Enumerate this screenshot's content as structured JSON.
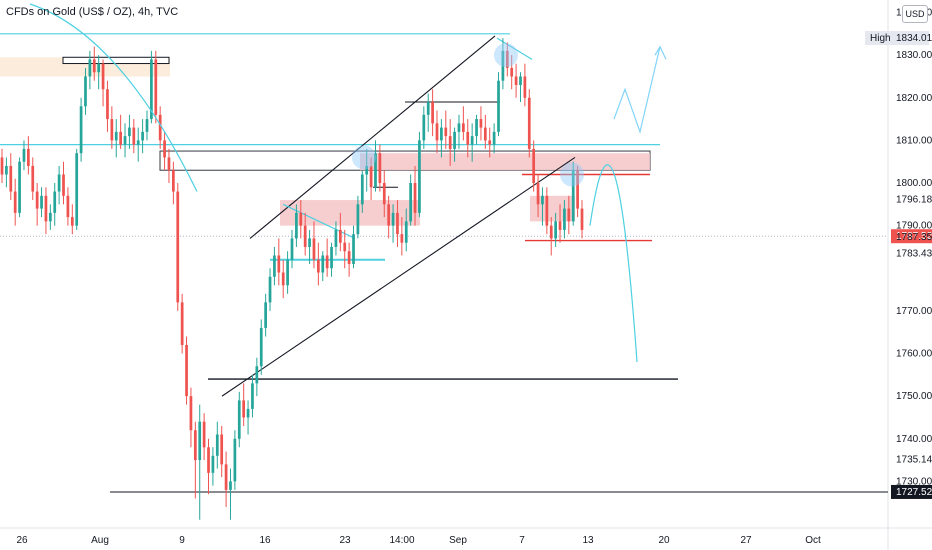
{
  "header": {
    "title": "CFDs on Gold (US$ / OZ), 4h, TVC",
    "currency": "USD"
  },
  "chart_data": {
    "type": "candlestick",
    "y_axis_side": "right",
    "ylim": [
      1720.0,
      1842.0
    ],
    "y_ticks": [
      1840.0,
      1830.0,
      1820.0,
      1810.0,
      1800.0,
      1790.0,
      1770.0,
      1760.0,
      1750.0,
      1740.0,
      1730.0
    ],
    "x_tick_labels": [
      "26",
      "Aug",
      "9",
      "16",
      "23",
      "14:00",
      "Sep",
      "7",
      "13",
      "20",
      "27",
      "Oct"
    ],
    "price_labels": [
      {
        "text": "High",
        "value": "1834.01",
        "style": "high"
      },
      {
        "text": "",
        "value": "1796.18",
        "style": "plain"
      },
      {
        "text": "",
        "value": "1787.52",
        "style": "current"
      },
      {
        "text": "",
        "value": "1787.35",
        "style": "plain"
      },
      {
        "text": "",
        "value": "1783.43",
        "style": "plain"
      },
      {
        "text": "",
        "value": "1735.14",
        "style": "plain"
      },
      {
        "text": "",
        "value": "1727.52",
        "style": "dark"
      }
    ],
    "candles": [
      [
        1806,
        1808,
        1800,
        1802
      ],
      [
        1802,
        1806,
        1799,
        1804
      ],
      [
        1804,
        1807,
        1796,
        1798
      ],
      [
        1798,
        1801,
        1790,
        1793
      ],
      [
        1793,
        1806,
        1792,
        1805
      ],
      [
        1805,
        1810,
        1803,
        1808
      ],
      [
        1808,
        1811,
        1802,
        1804
      ],
      [
        1804,
        1806,
        1796,
        1798
      ],
      [
        1798,
        1800,
        1790,
        1794
      ],
      [
        1794,
        1799,
        1792,
        1797
      ],
      [
        1797,
        1799,
        1788,
        1791
      ],
      [
        1791,
        1795,
        1789,
        1793
      ],
      [
        1793,
        1800,
        1790,
        1798
      ],
      [
        1798,
        1804,
        1795,
        1802
      ],
      [
        1802,
        1805,
        1795,
        1797
      ],
      [
        1797,
        1799,
        1790,
        1792
      ],
      [
        1792,
        1795,
        1788,
        1790
      ],
      [
        1790,
        1808,
        1789,
        1807
      ],
      [
        1807,
        1820,
        1805,
        1818
      ],
      [
        1818,
        1827,
        1816,
        1825
      ],
      [
        1825,
        1831,
        1822,
        1829
      ],
      [
        1829,
        1832,
        1824,
        1826
      ],
      [
        1826,
        1830,
        1822,
        1828
      ],
      [
        1828,
        1829,
        1818,
        1822
      ],
      [
        1822,
        1824,
        1812,
        1815
      ],
      [
        1815,
        1818,
        1808,
        1810
      ],
      [
        1810,
        1815,
        1806,
        1812
      ],
      [
        1812,
        1816,
        1808,
        1809
      ],
      [
        1809,
        1814,
        1806,
        1811
      ],
      [
        1811,
        1816,
        1808,
        1813
      ],
      [
        1813,
        1815,
        1807,
        1809
      ],
      [
        1809,
        1813,
        1805,
        1810
      ],
      [
        1810,
        1815,
        1807,
        1812
      ],
      [
        1812,
        1817,
        1810,
        1815
      ],
      [
        1815,
        1831,
        1814,
        1829
      ],
      [
        1829,
        1831,
        1814,
        1816
      ],
      [
        1816,
        1818,
        1808,
        1810
      ],
      [
        1810,
        1812,
        1803,
        1806
      ],
      [
        1806,
        1808,
        1800,
        1803
      ],
      [
        1803,
        1805,
        1795,
        1798
      ],
      [
        1798,
        1800,
        1770,
        1772
      ],
      [
        1772,
        1774,
        1760,
        1762
      ],
      [
        1762,
        1764,
        1748,
        1750
      ],
      [
        1750,
        1752,
        1738,
        1742
      ],
      [
        1742,
        1744,
        1726,
        1735
      ],
      [
        1735,
        1748,
        1721,
        1744
      ],
      [
        1744,
        1746,
        1735,
        1738
      ],
      [
        1738,
        1740,
        1727,
        1732
      ],
      [
        1732,
        1738,
        1729,
        1736
      ],
      [
        1736,
        1744,
        1733,
        1741
      ],
      [
        1741,
        1743,
        1731,
        1734
      ],
      [
        1734,
        1737,
        1724,
        1728
      ],
      [
        1728,
        1733,
        1721,
        1730
      ],
      [
        1730,
        1742,
        1728,
        1740
      ],
      [
        1740,
        1751,
        1738,
        1749
      ],
      [
        1749,
        1753,
        1743,
        1745
      ],
      [
        1745,
        1749,
        1741,
        1747
      ],
      [
        1747,
        1755,
        1745,
        1753
      ],
      [
        1753,
        1759,
        1750,
        1757
      ],
      [
        1757,
        1768,
        1755,
        1766
      ],
      [
        1766,
        1774,
        1764,
        1772
      ],
      [
        1772,
        1780,
        1770,
        1778
      ],
      [
        1778,
        1785,
        1776,
        1783
      ],
      [
        1783,
        1787,
        1776,
        1779
      ],
      [
        1779,
        1782,
        1773,
        1776
      ],
      [
        1776,
        1784,
        1774,
        1782
      ],
      [
        1782,
        1789,
        1780,
        1787
      ],
      [
        1787,
        1795,
        1785,
        1793
      ],
      [
        1793,
        1796,
        1787,
        1790
      ],
      [
        1790,
        1793,
        1783,
        1785
      ],
      [
        1785,
        1789,
        1781,
        1787
      ],
      [
        1787,
        1791,
        1780,
        1782
      ],
      [
        1782,
        1786,
        1776,
        1779
      ],
      [
        1779,
        1784,
        1777,
        1783
      ],
      [
        1783,
        1787,
        1778,
        1780
      ],
      [
        1780,
        1786,
        1778,
        1785
      ],
      [
        1785,
        1791,
        1783,
        1789
      ],
      [
        1789,
        1793,
        1784,
        1786
      ],
      [
        1786,
        1789,
        1780,
        1784
      ],
      [
        1784,
        1786,
        1778,
        1781
      ],
      [
        1781,
        1790,
        1780,
        1788
      ],
      [
        1788,
        1797,
        1787,
        1795
      ],
      [
        1795,
        1803,
        1793,
        1802
      ],
      [
        1802,
        1808,
        1798,
        1804
      ],
      [
        1804,
        1806,
        1796,
        1799
      ],
      [
        1799,
        1810,
        1798,
        1807
      ],
      [
        1807,
        1809,
        1798,
        1800
      ],
      [
        1800,
        1803,
        1792,
        1795
      ],
      [
        1795,
        1797,
        1787,
        1790
      ],
      [
        1790,
        1795,
        1786,
        1793
      ],
      [
        1793,
        1796,
        1785,
        1788
      ],
      [
        1788,
        1792,
        1783,
        1786
      ],
      [
        1786,
        1794,
        1784,
        1791
      ],
      [
        1791,
        1802,
        1790,
        1800
      ],
      [
        1800,
        1804,
        1790,
        1793
      ],
      [
        1793,
        1812,
        1792,
        1810
      ],
      [
        1810,
        1818,
        1808,
        1816
      ],
      [
        1816,
        1821,
        1812,
        1819
      ],
      [
        1819,
        1822,
        1811,
        1814
      ],
      [
        1814,
        1817,
        1807,
        1810
      ],
      [
        1810,
        1815,
        1806,
        1813
      ],
      [
        1813,
        1817,
        1808,
        1811
      ],
      [
        1811,
        1815,
        1804,
        1808
      ],
      [
        1808,
        1813,
        1805,
        1812
      ],
      [
        1812,
        1816,
        1808,
        1814
      ],
      [
        1814,
        1818,
        1810,
        1812
      ],
      [
        1812,
        1815,
        1806,
        1809
      ],
      [
        1809,
        1814,
        1805,
        1811
      ],
      [
        1811,
        1816,
        1809,
        1815
      ],
      [
        1815,
        1818,
        1810,
        1813
      ],
      [
        1813,
        1816,
        1808,
        1810
      ],
      [
        1810,
        1813,
        1806,
        1809
      ],
      [
        1809,
        1814,
        1807,
        1812
      ],
      [
        1812,
        1826,
        1811,
        1824
      ],
      [
        1824,
        1834,
        1822,
        1831
      ],
      [
        1831,
        1833,
        1825,
        1827
      ],
      [
        1827,
        1830,
        1822,
        1825
      ],
      [
        1825,
        1828,
        1820,
        1823
      ],
      [
        1823,
        1826,
        1819,
        1825
      ],
      [
        1825,
        1828,
        1818,
        1820
      ],
      [
        1820,
        1822,
        1806,
        1808
      ],
      [
        1808,
        1810,
        1798,
        1800
      ],
      [
        1800,
        1802,
        1792,
        1795
      ],
      [
        1795,
        1799,
        1790,
        1797
      ],
      [
        1797,
        1799,
        1788,
        1790
      ],
      [
        1790,
        1792,
        1783,
        1787
      ],
      [
        1787,
        1793,
        1785,
        1791
      ],
      [
        1791,
        1795,
        1786,
        1789
      ],
      [
        1789,
        1796,
        1787,
        1794
      ],
      [
        1794,
        1797,
        1788,
        1791
      ],
      [
        1791,
        1805,
        1790,
        1803
      ],
      [
        1803,
        1804,
        1792,
        1794
      ],
      [
        1794,
        1796,
        1787,
        1789
      ]
    ],
    "annotations": {
      "resistance_zone_label": "",
      "notes": []
    }
  },
  "colors": {
    "up": "#26a69a",
    "down": "#ef5350",
    "trendline": "#131722",
    "cyan": "#4dd0e1",
    "red_line": "#e53935",
    "zone_red": "#f4c5c8",
    "zone_yellow": "#fbe9d6",
    "current_price_bg": "#ef5350",
    "dark_label_bg": "#131722",
    "high_label_bg": "#e6e8ef"
  }
}
